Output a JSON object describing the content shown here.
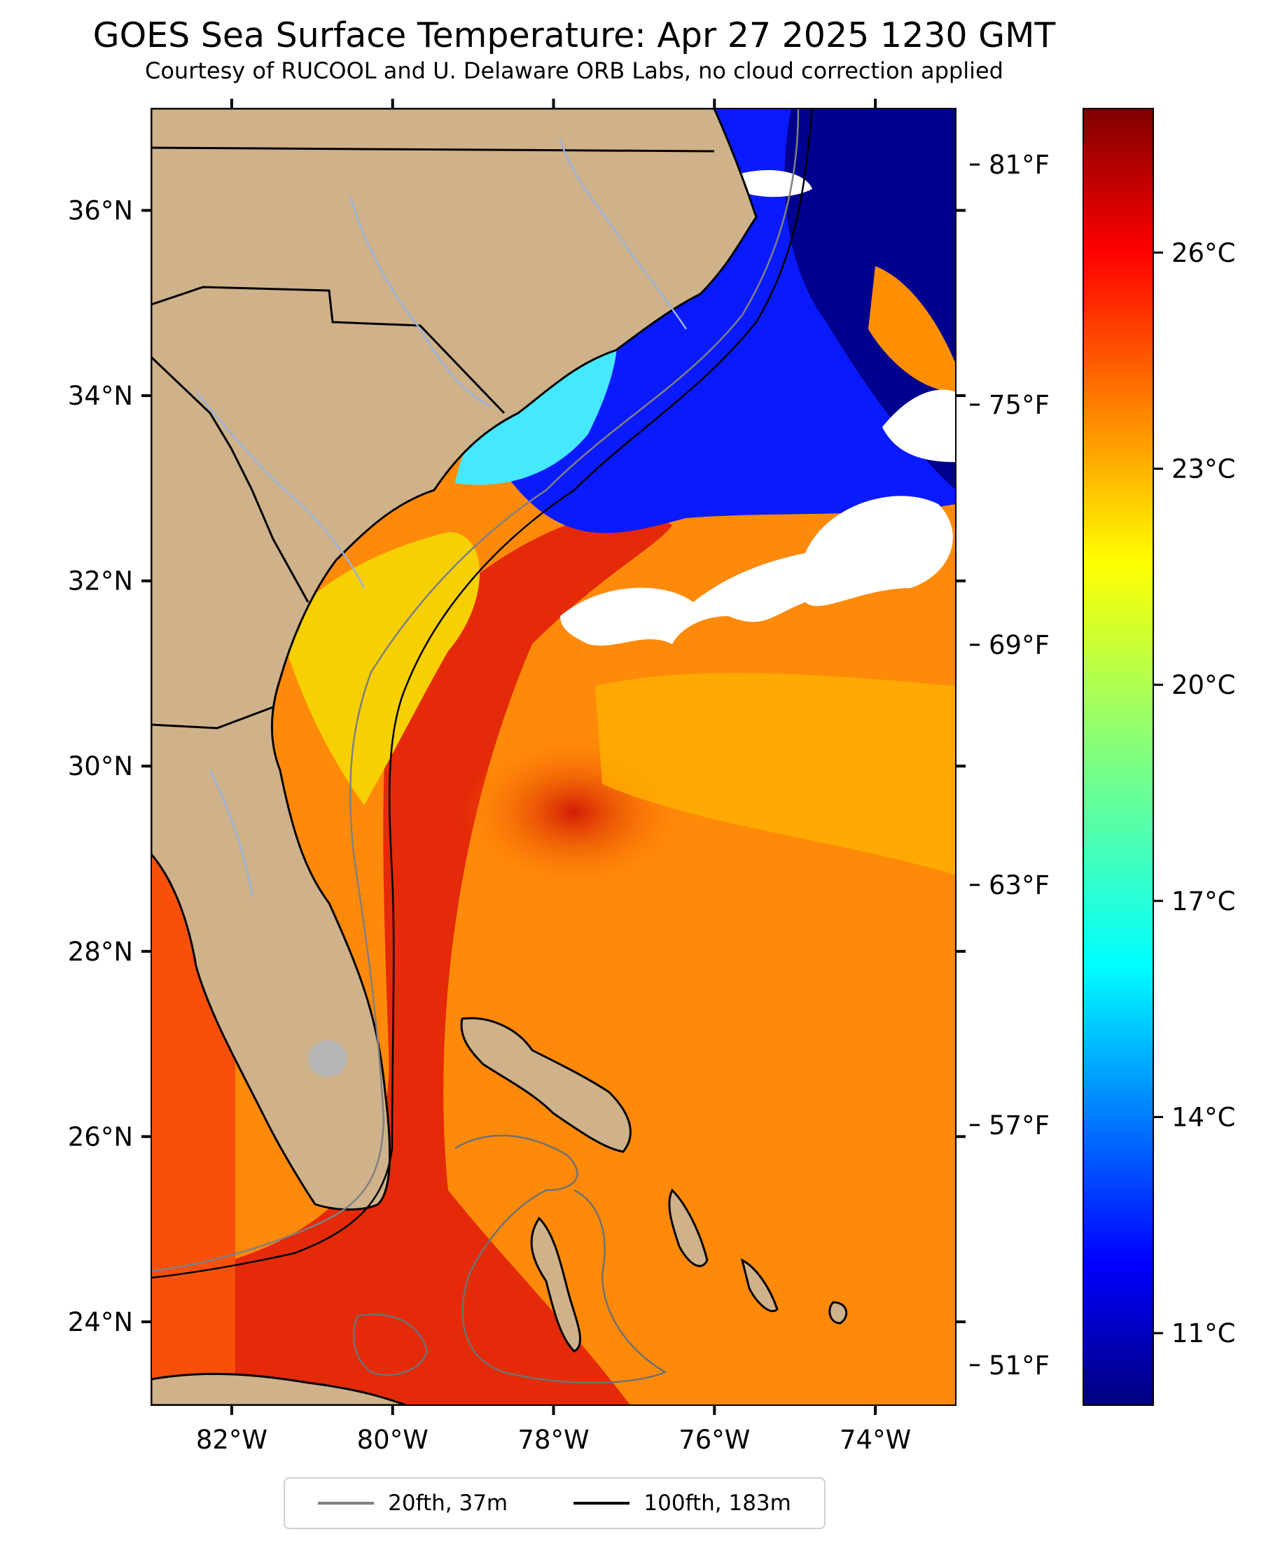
{
  "title": "GOES Sea Surface Temperature: Apr 27 2025 1230 GMT",
  "subtitle": "Courtesy of RUCOOL and U. Delaware ORB Labs, no cloud correction applied",
  "map": {
    "lon_range": [
      -83,
      -73
    ],
    "lat_range": [
      23.1,
      37.1
    ],
    "lat_ticks": [
      {
        "value": 24,
        "label": "24°N"
      },
      {
        "value": 26,
        "label": "26°N"
      },
      {
        "value": 28,
        "label": "28°N"
      },
      {
        "value": 30,
        "label": "30°N"
      },
      {
        "value": 32,
        "label": "32°N"
      },
      {
        "value": 34,
        "label": "34°N"
      },
      {
        "value": 36,
        "label": "36°N"
      }
    ],
    "lon_ticks": [
      {
        "value": -82,
        "label": "82°W"
      },
      {
        "value": -80,
        "label": "80°W"
      },
      {
        "value": -78,
        "label": "78°W"
      },
      {
        "value": -76,
        "label": "76°W"
      },
      {
        "value": -74,
        "label": "74°W"
      }
    ],
    "land_color": "#cfb28a",
    "cloud_color": "#ffffff"
  },
  "colorbar": {
    "celsius_range": [
      10,
      28
    ],
    "celsius_ticks": [
      {
        "value": 11,
        "label": "11°C"
      },
      {
        "value": 14,
        "label": "14°C"
      },
      {
        "value": 17,
        "label": "17°C"
      },
      {
        "value": 20,
        "label": "20°C"
      },
      {
        "value": 23,
        "label": "23°C"
      },
      {
        "value": 26,
        "label": "26°C"
      }
    ],
    "fahrenheit_ticks": [
      {
        "value": 51,
        "label": "51°F"
      },
      {
        "value": 57,
        "label": "57°F"
      },
      {
        "value": 63,
        "label": "63°F"
      },
      {
        "value": 69,
        "label": "69°F"
      },
      {
        "value": 75,
        "label": "75°F"
      },
      {
        "value": 81,
        "label": "81°F"
      }
    ],
    "colormap": "jet"
  },
  "legend": {
    "items": [
      {
        "label": "20fth, 37m",
        "color": "#808080"
      },
      {
        "label": "100fth, 183m",
        "color": "#000000"
      }
    ]
  }
}
